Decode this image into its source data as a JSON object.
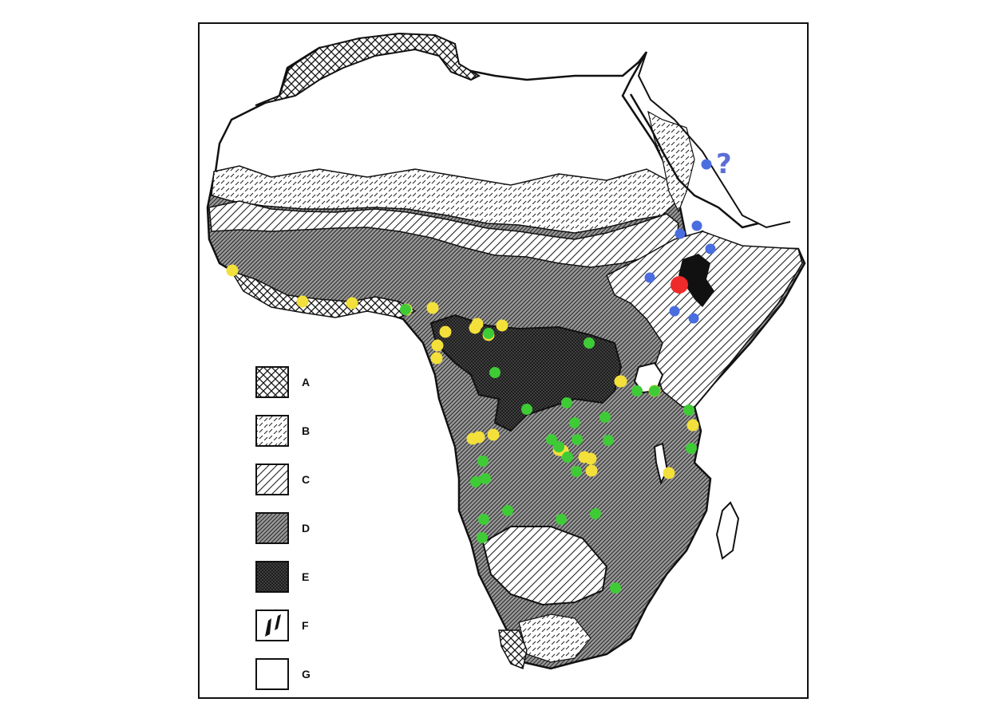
{
  "legend": {
    "items": [
      {
        "key": "A",
        "pattern": "crosshatch"
      },
      {
        "key": "B",
        "pattern": "dashes"
      },
      {
        "key": "C",
        "pattern": "wide-diagonal"
      },
      {
        "key": "D",
        "pattern": "dense-diagonal"
      },
      {
        "key": "E",
        "pattern": "dark-stipple"
      },
      {
        "key": "F",
        "pattern": "lake-symbol"
      },
      {
        "key": "G",
        "pattern": "blank"
      }
    ]
  },
  "annotation": {
    "question_mark": "?"
  },
  "colors": {
    "region_A": "#ffffff",
    "region_D": "#8a8a8a",
    "region_E": "#2a2a2a",
    "marker_yellow": "#f3e03a",
    "marker_green": "#3ecb36",
    "marker_blue": "#4a6de0",
    "marker_red": "#ee2a2a",
    "question": "#5b6ed6"
  },
  "markers": {
    "yellow_count": 26,
    "green_count": 27,
    "blue_count": 8,
    "red_count": 1
  }
}
